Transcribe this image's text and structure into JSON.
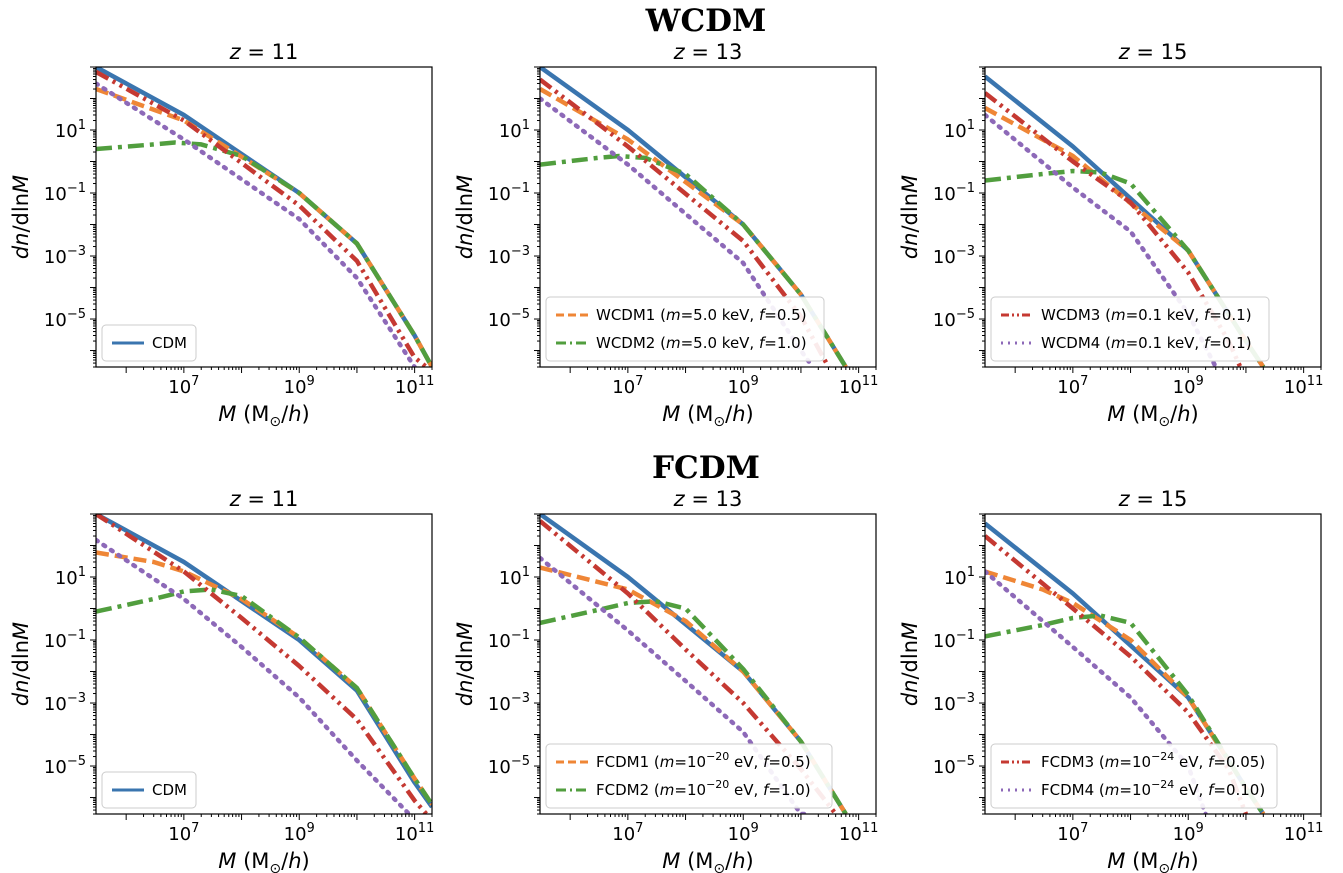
{
  "row_titles": [
    "WCDM",
    "FCDM"
  ],
  "colors": {
    "CDM": "#3a75af",
    "c1": "#ef8636",
    "c2": "#519e3e",
    "c3": "#c53932",
    "c4": "#8d69b8"
  },
  "chart_data": [
    {
      "type": "line",
      "group": "WCDM",
      "title": "z = 11",
      "xlabel": "M (M⊙/h)",
      "ylabel": "dn/dlnM",
      "xscale": "log",
      "yscale": "log",
      "xlim": [
        300000.0,
        200000000000.0
      ],
      "ylim": [
        3e-07,
        1000.0
      ],
      "xticks": [
        "10^7",
        "10^9",
        "10^11"
      ],
      "yticks": [
        "10^1",
        "10^-1",
        "10^-3",
        "10^-5"
      ],
      "legend": {
        "position": "lower-left",
        "entries": [
          "CDM"
        ]
      },
      "series": [
        {
          "name": "CDM",
          "style": "solid",
          "color": "#3a75af",
          "x": [
            300000.0,
            10000000.0,
            1000000000.0,
            10000000000.0,
            100000000000.0,
            200000000000.0
          ],
          "y": [
            1000,
            30,
            0.1,
            0.0025,
            3e-06,
            3e-07
          ]
        },
        {
          "name": "WCDM1 (m=5.0 keV, f=0.5)",
          "style": "dashed",
          "color": "#ef8636",
          "x": [
            300000.0,
            10000000.0,
            1000000000.0,
            10000000000.0,
            100000000000.0,
            200000000000.0
          ],
          "y": [
            200,
            20,
            0.1,
            0.0025,
            3e-06,
            3e-07
          ]
        },
        {
          "name": "WCDM2 (m=5.0 keV, f=1.0)",
          "style": "dashdot",
          "color": "#519e3e",
          "x": [
            300000.0,
            3000000.0,
            7000000.0,
            20000000.0,
            100000000.0,
            1000000000.0,
            10000000000.0,
            100000000000.0,
            200000000000.0
          ],
          "y": [
            2.5,
            3.5,
            4,
            3.5,
            1.5,
            0.1,
            0.0025,
            3e-06,
            3e-07
          ]
        },
        {
          "name": "WCDM3 (m=0.1 keV, f=0.1)",
          "style": "dashdotdot",
          "color": "#c53932",
          "x": [
            300000.0,
            10000000.0,
            1000000000.0,
            10000000000.0,
            100000000000.0,
            160000000000.0
          ],
          "y": [
            700,
            20,
            0.04,
            0.0007,
            6e-07,
            3e-07
          ]
        },
        {
          "name": "WCDM4 (m=0.1 keV, f=0.1)",
          "style": "dotted",
          "color": "#8d69b8",
          "x": [
            300000.0,
            10000000.0,
            1000000000.0,
            10000000000.0,
            100000000000.0
          ],
          "y": [
            300,
            5,
            0.015,
            0.0002,
            3e-07
          ]
        }
      ]
    },
    {
      "type": "line",
      "group": "WCDM",
      "title": "z = 13",
      "xlabel": "M (M⊙/h)",
      "ylabel": "dn/dlnM",
      "xscale": "log",
      "yscale": "log",
      "xlim": [
        300000.0,
        200000000000.0
      ],
      "ylim": [
        3e-07,
        1000.0
      ],
      "xticks": [
        "10^7",
        "10^9",
        "10^11"
      ],
      "yticks": [
        "10^1",
        "10^-1",
        "10^-3",
        "10^-5"
      ],
      "legend": {
        "position": "lower-left",
        "entries": [
          "WCDM1 (m=5.0 keV, f=0.5)",
          "WCDM2 (m=5.0 keV, f=1.0)"
        ]
      },
      "series": [
        {
          "name": "CDM",
          "style": "solid",
          "color": "#3a75af",
          "x": [
            300000.0,
            10000000.0,
            1000000000.0,
            10000000000.0,
            60000000000.0
          ],
          "y": [
            1000,
            10,
            0.01,
            6e-05,
            3e-07
          ]
        },
        {
          "name": "WCDM1 (m=5.0 keV, f=0.5)",
          "style": "dashed",
          "color": "#ef8636",
          "x": [
            300000.0,
            10000000.0,
            1000000000.0,
            10000000000.0,
            60000000000.0
          ],
          "y": [
            200,
            5,
            0.01,
            6e-05,
            3e-07
          ]
        },
        {
          "name": "WCDM2 (m=5.0 keV, f=1.0)",
          "style": "dashdot",
          "color": "#519e3e",
          "x": [
            300000.0,
            3000000.0,
            7000000.0,
            20000000.0,
            100000000.0,
            1000000000.0,
            10000000000.0,
            60000000000.0
          ],
          "y": [
            0.8,
            1.3,
            1.5,
            1.3,
            0.4,
            0.01,
            6e-05,
            3e-07
          ]
        },
        {
          "name": "WCDM3 (m=0.1 keV, f=0.1)",
          "style": "dashdotdot",
          "color": "#c53932",
          "x": [
            300000.0,
            10000000.0,
            1000000000.0,
            10000000000.0,
            30000000000.0
          ],
          "y": [
            400,
            3,
            0.003,
            1.2e-05,
            3e-07
          ]
        },
        {
          "name": "WCDM4 (m=0.1 keV, f=0.1)",
          "style": "dotted",
          "color": "#8d69b8",
          "x": [
            300000.0,
            10000000.0,
            1000000000.0,
            10000000000.0,
            16000000000.0
          ],
          "y": [
            100,
            0.8,
            0.0006,
            1e-06,
            3e-07
          ]
        }
      ]
    },
    {
      "type": "line",
      "group": "WCDM",
      "title": "z = 15",
      "xlabel": "M (M⊙/h)",
      "ylabel": "dn/dlnM",
      "xscale": "log",
      "yscale": "log",
      "xlim": [
        300000.0,
        200000000000.0
      ],
      "ylim": [
        3e-07,
        1000.0
      ],
      "xticks": [
        "10^7",
        "10^9",
        "10^11"
      ],
      "yticks": [
        "10^1",
        "10^-1",
        "10^-3",
        "10^-5"
      ],
      "legend": {
        "position": "lower-left",
        "entries": [
          "WCDM3 (m=0.1 keV, f=0.1)",
          "WCDM4 (m=0.1 keV, f=0.1)"
        ]
      },
      "series": [
        {
          "name": "CDM",
          "style": "solid",
          "color": "#3a75af",
          "x": [
            300000.0,
            10000000.0,
            1000000000.0,
            10000000000.0,
            20000000000.0
          ],
          "y": [
            500,
            3,
            0.0015,
            2e-06,
            3e-07
          ]
        },
        {
          "name": "WCDM1 (m=5.0 keV, f=0.5)",
          "style": "dashed",
          "color": "#ef8636",
          "x": [
            300000.0,
            10000000.0,
            1000000000.0,
            10000000000.0,
            20000000000.0
          ],
          "y": [
            50,
            1.5,
            0.0015,
            2e-06,
            3e-07
          ]
        },
        {
          "name": "WCDM2 (m=5.0 keV, f=1.0)",
          "style": "dashdot",
          "color": "#519e3e",
          "x": [
            300000.0,
            3000000.0,
            10000000.0,
            30000000.0,
            100000000.0,
            1000000000.0,
            10000000000.0,
            20000000000.0
          ],
          "y": [
            0.25,
            0.4,
            0.5,
            0.45,
            0.2,
            0.0015,
            2e-06,
            3e-07
          ]
        },
        {
          "name": "WCDM3 (m=0.1 keV, f=0.1)",
          "style": "dashdotdot",
          "color": "#c53932",
          "x": [
            300000.0,
            10000000.0,
            100000000.0,
            1000000000.0,
            5000000000.0,
            8000000000.0
          ],
          "y": [
            150,
            1,
            0.05,
            0.0003,
            2e-06,
            3e-07
          ]
        },
        {
          "name": "WCDM4 (m=0.1 keV, f=0.1)",
          "style": "dotted",
          "color": "#8d69b8",
          "x": [
            300000.0,
            10000000.0,
            100000000.0,
            1000000000.0,
            3000000000.0
          ],
          "y": [
            30,
            0.15,
            0.006,
            1.5e-05,
            3e-07
          ]
        }
      ]
    },
    {
      "type": "line",
      "group": "FCDM",
      "title": "z = 11",
      "xlabel": "M (M⊙/h)",
      "ylabel": "dn/dlnM",
      "xscale": "log",
      "yscale": "log",
      "xlim": [
        300000.0,
        200000000000.0
      ],
      "ylim": [
        3e-07,
        1000.0
      ],
      "xticks": [
        "10^7",
        "10^9",
        "10^11"
      ],
      "yticks": [
        "10^1",
        "10^-1",
        "10^-3",
        "10^-5"
      ],
      "legend": {
        "position": "lower-left",
        "entries": [
          "CDM"
        ]
      },
      "series": [
        {
          "name": "CDM",
          "style": "solid",
          "color": "#3a75af",
          "x": [
            300000.0,
            10000000.0,
            1000000000.0,
            10000000000.0,
            100000000000.0,
            200000000000.0
          ],
          "y": [
            1000,
            30,
            0.1,
            0.0025,
            3e-06,
            5e-07
          ]
        },
        {
          "name": "FCDM1 (m=10^-20 eV, f=0.5)",
          "style": "dashed",
          "color": "#ef8636",
          "x": [
            300000.0,
            3000000.0,
            10000000.0,
            100000000.0,
            1000000000.0,
            10000000000.0,
            100000000000.0,
            200000000000.0
          ],
          "y": [
            60,
            30,
            15,
            2,
            0.12,
            0.003,
            4e-06,
            6e-07
          ]
        },
        {
          "name": "FCDM2 (m=10^-20 eV, f=1.0)",
          "style": "dashdot",
          "color": "#519e3e",
          "x": [
            300000.0,
            3000000.0,
            10000000.0,
            30000000.0,
            100000000.0,
            1000000000.0,
            10000000000.0,
            100000000000.0,
            200000000000.0
          ],
          "y": [
            0.8,
            2,
            3.5,
            4,
            2.5,
            0.12,
            0.003,
            4e-06,
            6e-07
          ]
        },
        {
          "name": "FCDM3 (m=10^-24 eV, f=0.05)",
          "style": "dashdotdot",
          "color": "#c53932",
          "x": [
            300000.0,
            10000000.0,
            100000000.0,
            1000000000.0,
            10000000000.0,
            100000000000.0,
            160000000000.0
          ],
          "y": [
            1000,
            15,
            0.5,
            0.015,
            0.0003,
            8e-07,
            3e-07
          ]
        },
        {
          "name": "FCDM4 (m=10^-24 eV, f=0.10)",
          "style": "dotted",
          "color": "#8d69b8",
          "x": [
            300000.0,
            10000000.0,
            100000000.0,
            1000000000.0,
            10000000000.0,
            80000000000.0
          ],
          "y": [
            150,
            2,
            0.06,
            0.0015,
            1.5e-05,
            3e-07
          ]
        }
      ]
    },
    {
      "type": "line",
      "group": "FCDM",
      "title": "z = 13",
      "xlabel": "M (M⊙/h)",
      "ylabel": "dn/dlnM",
      "xscale": "log",
      "yscale": "log",
      "xlim": [
        300000.0,
        200000000000.0
      ],
      "ylim": [
        3e-07,
        1000.0
      ],
      "xticks": [
        "10^7",
        "10^9",
        "10^11"
      ],
      "yticks": [
        "10^1",
        "10^-1",
        "10^-3",
        "10^-5"
      ],
      "legend": {
        "position": "lower-left",
        "entries": [
          "FCDM1 (m=10^-20 eV, f=0.5)",
          "FCDM2 (m=10^-20 eV, f=1.0)"
        ]
      },
      "series": [
        {
          "name": "CDM",
          "style": "solid",
          "color": "#3a75af",
          "x": [
            300000.0,
            10000000.0,
            1000000000.0,
            10000000000.0,
            60000000000.0
          ],
          "y": [
            1000,
            10,
            0.01,
            6e-05,
            3e-07
          ]
        },
        {
          "name": "FCDM1 (m=10^-20 eV, f=0.5)",
          "style": "dashed",
          "color": "#ef8636",
          "x": [
            300000.0,
            3000000.0,
            10000000.0,
            100000000.0,
            1000000000.0,
            10000000000.0,
            60000000000.0
          ],
          "y": [
            20,
            7,
            4,
            0.4,
            0.01,
            6e-05,
            3e-07
          ]
        },
        {
          "name": "FCDM2 (m=10^-20 eV, f=1.0)",
          "style": "dashdot",
          "color": "#519e3e",
          "x": [
            300000.0,
            3000000.0,
            10000000.0,
            30000000.0,
            100000000.0,
            1000000000.0,
            10000000000.0,
            60000000000.0
          ],
          "y": [
            0.35,
            0.9,
            1.5,
            1.7,
            1,
            0.012,
            6e-05,
            3e-07
          ]
        },
        {
          "name": "FCDM3 (m=10^-24 eV, f=0.05)",
          "style": "dashdotdot",
          "color": "#c53932",
          "x": [
            300000.0,
            10000000.0,
            100000000.0,
            1000000000.0,
            10000000000.0,
            40000000000.0
          ],
          "y": [
            600,
            3,
            0.05,
            0.001,
            8e-06,
            3e-07
          ]
        },
        {
          "name": "FCDM4 (m=10^-24 eV, f=0.10)",
          "style": "dotted",
          "color": "#8d69b8",
          "x": [
            300000.0,
            10000000.0,
            100000000.0,
            1000000000.0,
            10000000000.0,
            12000000000.0
          ],
          "y": [
            40,
            0.2,
            0.005,
            0.00012,
            3e-07,
            3e-07
          ]
        }
      ]
    },
    {
      "type": "line",
      "group": "FCDM",
      "title": "z = 15",
      "xlabel": "M (M⊙/h)",
      "ylabel": "dn/dlnM",
      "xscale": "log",
      "yscale": "log",
      "xlim": [
        300000.0,
        200000000000.0
      ],
      "ylim": [
        3e-07,
        1000.0
      ],
      "xticks": [
        "10^7",
        "10^9",
        "10^11"
      ],
      "yticks": [
        "10^1",
        "10^-1",
        "10^-3",
        "10^-5"
      ],
      "legend": {
        "position": "lower-left",
        "entries": [
          "FCDM3 (m=10^-24 eV, f=0.05)",
          "FCDM4 (m=10^-24 eV, f=0.10)"
        ]
      },
      "series": [
        {
          "name": "CDM",
          "style": "solid",
          "color": "#3a75af",
          "x": [
            300000.0,
            10000000.0,
            1000000000.0,
            10000000000.0,
            20000000000.0
          ],
          "y": [
            500,
            3,
            0.0015,
            2e-06,
            3e-07
          ]
        },
        {
          "name": "FCDM1 (m=10^-20 eV, f=0.5)",
          "style": "dashed",
          "color": "#ef8636",
          "x": [
            300000.0,
            3000000.0,
            10000000.0,
            100000000.0,
            1000000000.0,
            10000000000.0,
            20000000000.0
          ],
          "y": [
            15,
            4,
            1.5,
            0.1,
            0.0015,
            2e-06,
            3e-07
          ]
        },
        {
          "name": "FCDM2 (m=10^-20 eV, f=1.0)",
          "style": "dashdot",
          "color": "#519e3e",
          "x": [
            300000.0,
            3000000.0,
            10000000.0,
            30000000.0,
            100000000.0,
            1000000000.0,
            10000000000.0,
            20000000000.0
          ],
          "y": [
            0.13,
            0.3,
            0.5,
            0.6,
            0.35,
            0.0018,
            2e-06,
            3e-07
          ]
        },
        {
          "name": "FCDM3 (m=10^-24 eV, f=0.05)",
          "style": "dashdotdot",
          "color": "#c53932",
          "x": [
            300000.0,
            10000000.0,
            100000000.0,
            1000000000.0,
            5000000000.0,
            10000000000.0
          ],
          "y": [
            200,
            1,
            0.03,
            0.0005,
            8e-06,
            3e-07
          ]
        },
        {
          "name": "FCDM4 (m=10^-24 eV, f=0.10)",
          "style": "dotted",
          "color": "#8d69b8",
          "x": [
            300000.0,
            10000000.0,
            100000000.0,
            1000000000.0,
            2000000000.0
          ],
          "y": [
            15,
            0.06,
            0.0015,
            1e-05,
            3e-07
          ]
        }
      ]
    }
  ]
}
